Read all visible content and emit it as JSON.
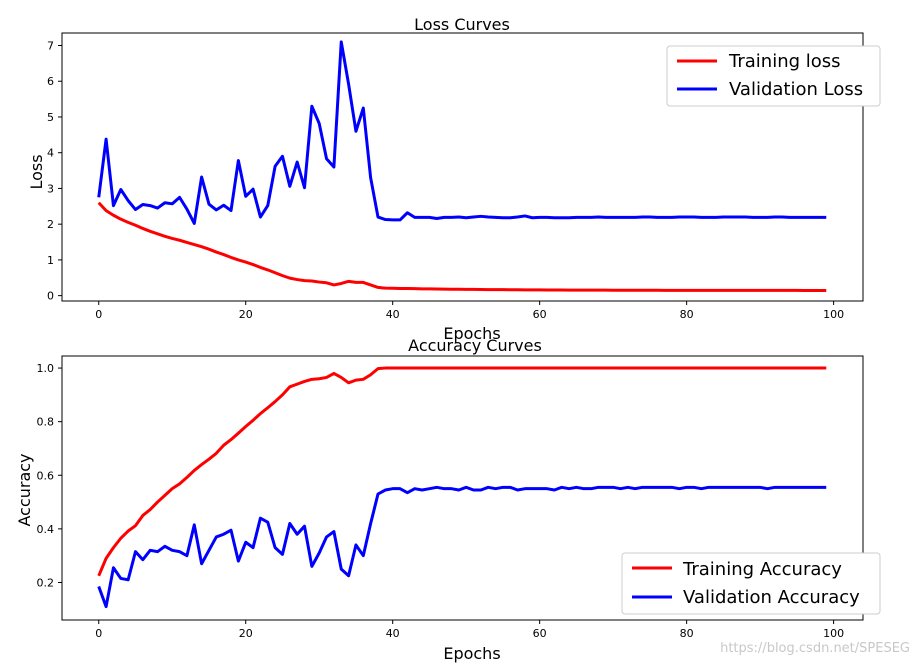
{
  "chart_data": [
    {
      "type": "line",
      "title": "Loss Curves",
      "xlabel": "Epochs",
      "ylabel": "Loss",
      "xlim": [
        -5,
        104
      ],
      "ylim": [
        -0.15,
        7.35
      ],
      "x_ticks": [
        0,
        20,
        40,
        60,
        80,
        100
      ],
      "y_ticks": [
        0,
        1,
        2,
        3,
        4,
        5,
        6,
        7
      ],
      "grid": false,
      "legend": "top-right",
      "series": [
        {
          "name": "Training loss",
          "color": "#ff0000",
          "values": [
            2.6,
            2.38,
            2.25,
            2.14,
            2.05,
            1.97,
            1.88,
            1.8,
            1.73,
            1.66,
            1.6,
            1.55,
            1.49,
            1.43,
            1.37,
            1.3,
            1.22,
            1.15,
            1.07,
            1.0,
            0.94,
            0.87,
            0.79,
            0.72,
            0.64,
            0.56,
            0.49,
            0.45,
            0.42,
            0.41,
            0.38,
            0.36,
            0.3,
            0.34,
            0.4,
            0.37,
            0.37,
            0.3,
            0.23,
            0.21,
            0.205,
            0.2,
            0.2,
            0.195,
            0.19,
            0.188,
            0.185,
            0.182,
            0.18,
            0.178,
            0.176,
            0.174,
            0.172,
            0.17,
            0.168,
            0.167,
            0.165,
            0.164,
            0.162,
            0.161,
            0.16,
            0.159,
            0.158,
            0.157,
            0.156,
            0.155,
            0.155,
            0.154,
            0.153,
            0.153,
            0.152,
            0.152,
            0.151,
            0.151,
            0.15,
            0.15,
            0.15,
            0.149,
            0.149,
            0.149,
            0.148,
            0.148,
            0.148,
            0.148,
            0.147,
            0.147,
            0.147,
            0.147,
            0.147,
            0.146,
            0.146,
            0.146,
            0.146,
            0.146,
            0.146,
            0.146,
            0.145,
            0.145,
            0.145,
            0.145
          ]
        },
        {
          "name": "Validation Loss",
          "color": "#0000ff",
          "values": [
            2.75,
            4.38,
            2.52,
            2.97,
            2.66,
            2.41,
            2.55,
            2.52,
            2.45,
            2.6,
            2.57,
            2.75,
            2.42,
            2.02,
            3.32,
            2.56,
            2.4,
            2.53,
            2.38,
            3.78,
            2.78,
            2.98,
            2.2,
            2.52,
            3.62,
            3.9,
            3.06,
            3.74,
            3.02,
            5.3,
            4.82,
            3.83,
            3.6,
            7.1,
            5.92,
            4.6,
            5.25,
            3.3,
            2.2,
            2.13,
            2.12,
            2.12,
            2.32,
            2.19,
            2.19,
            2.19,
            2.16,
            2.19,
            2.19,
            2.2,
            2.18,
            2.2,
            2.22,
            2.2,
            2.19,
            2.18,
            2.18,
            2.2,
            2.23,
            2.18,
            2.19,
            2.19,
            2.18,
            2.18,
            2.18,
            2.19,
            2.19,
            2.19,
            2.2,
            2.19,
            2.19,
            2.19,
            2.19,
            2.19,
            2.2,
            2.2,
            2.19,
            2.19,
            2.19,
            2.2,
            2.2,
            2.2,
            2.19,
            2.19,
            2.19,
            2.2,
            2.2,
            2.2,
            2.2,
            2.19,
            2.19,
            2.19,
            2.2,
            2.2,
            2.19,
            2.19,
            2.19,
            2.19,
            2.19,
            2.19
          ]
        }
      ]
    },
    {
      "type": "line",
      "title": "Accuracy Curves",
      "xlabel": "Epochs",
      "ylabel": "Accuracy",
      "xlim": [
        -5,
        104
      ],
      "ylim": [
        0.06,
        1.045
      ],
      "x_ticks": [
        0,
        20,
        40,
        60,
        80,
        100
      ],
      "y_ticks": [
        0.2,
        0.4,
        0.6,
        0.8,
        1.0
      ],
      "y_tick_labels": [
        "0.2",
        "0.4",
        "0.6",
        "0.8",
        "1.0"
      ],
      "grid": false,
      "legend": "bottom-right",
      "series": [
        {
          "name": "Training Accuracy",
          "color": "#ff0000",
          "values": [
            0.225,
            0.29,
            0.33,
            0.365,
            0.392,
            0.412,
            0.45,
            0.472,
            0.5,
            0.525,
            0.55,
            0.568,
            0.592,
            0.618,
            0.64,
            0.66,
            0.682,
            0.712,
            0.733,
            0.757,
            0.782,
            0.805,
            0.83,
            0.852,
            0.875,
            0.9,
            0.93,
            0.94,
            0.95,
            0.958,
            0.96,
            0.965,
            0.98,
            0.965,
            0.945,
            0.955,
            0.958,
            0.975,
            0.998,
            1.0,
            1.0,
            1.0,
            1.0,
            1.0,
            1.0,
            1.0,
            1.0,
            1.0,
            1.0,
            1.0,
            1.0,
            1.0,
            1.0,
            1.0,
            1.0,
            1.0,
            1.0,
            1.0,
            1.0,
            1.0,
            1.0,
            1.0,
            1.0,
            1.0,
            1.0,
            1.0,
            1.0,
            1.0,
            1.0,
            1.0,
            1.0,
            1.0,
            1.0,
            1.0,
            1.0,
            1.0,
            1.0,
            1.0,
            1.0,
            1.0,
            1.0,
            1.0,
            1.0,
            1.0,
            1.0,
            1.0,
            1.0,
            1.0,
            1.0,
            1.0,
            1.0,
            1.0,
            1.0,
            1.0,
            1.0,
            1.0,
            1.0,
            1.0,
            1.0,
            1.0
          ]
        },
        {
          "name": "Validation Accuracy",
          "color": "#0000ff",
          "values": [
            0.185,
            0.11,
            0.255,
            0.215,
            0.21,
            0.315,
            0.285,
            0.32,
            0.315,
            0.335,
            0.32,
            0.315,
            0.3,
            0.415,
            0.27,
            0.32,
            0.37,
            0.38,
            0.395,
            0.28,
            0.35,
            0.33,
            0.44,
            0.425,
            0.33,
            0.305,
            0.42,
            0.38,
            0.41,
            0.26,
            0.31,
            0.37,
            0.39,
            0.25,
            0.225,
            0.34,
            0.3,
            0.42,
            0.53,
            0.545,
            0.55,
            0.55,
            0.535,
            0.55,
            0.545,
            0.55,
            0.555,
            0.55,
            0.55,
            0.545,
            0.555,
            0.545,
            0.545,
            0.555,
            0.55,
            0.555,
            0.555,
            0.545,
            0.55,
            0.55,
            0.55,
            0.55,
            0.545,
            0.555,
            0.55,
            0.555,
            0.55,
            0.55,
            0.555,
            0.555,
            0.555,
            0.55,
            0.555,
            0.55,
            0.555,
            0.555,
            0.555,
            0.555,
            0.555,
            0.55,
            0.555,
            0.555,
            0.55,
            0.555,
            0.555,
            0.555,
            0.555,
            0.555,
            0.555,
            0.555,
            0.555,
            0.55,
            0.555,
            0.555,
            0.555,
            0.555,
            0.555,
            0.555,
            0.555,
            0.555
          ]
        }
      ]
    }
  ],
  "watermark": "https://blog.csdn.net/SPESEG"
}
